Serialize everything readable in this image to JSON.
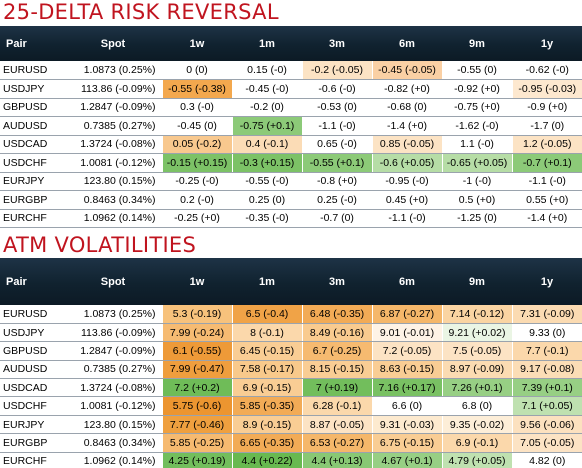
{
  "risk_reversal": {
    "title": "25-DELTA RISK REVERSAL",
    "headers": [
      "Pair",
      "Spot",
      "1w",
      "1m",
      "3m",
      "6m",
      "9m",
      "1y"
    ],
    "rows": [
      {
        "pair": "EURUSD",
        "spot": "1.0873 (0.25%)",
        "cells": [
          {
            "text": "0 (0)",
            "color": "#ffffff"
          },
          {
            "text": "0.15 (-0)",
            "color": "#ffffff"
          },
          {
            "text": "-0.2 (-0.05)",
            "color": "#fce3c4"
          },
          {
            "text": "-0.45 (-0.05)",
            "color": "#fad0a4"
          },
          {
            "text": "-0.55 (0)",
            "color": "#ffffff"
          },
          {
            "text": "-0.62 (-0)",
            "color": "#ffffff"
          }
        ]
      },
      {
        "pair": "USDJPY",
        "spot": "113.86 (-0.09%)",
        "cells": [
          {
            "text": "-0.55 (-0.38)",
            "color": "#f3a84e"
          },
          {
            "text": "-0.45 (-0)",
            "color": "#ffffff"
          },
          {
            "text": "-0.6 (-0)",
            "color": "#ffffff"
          },
          {
            "text": "-0.82 (+0)",
            "color": "#ffffff"
          },
          {
            "text": "-0.92 (+0)",
            "color": "#ffffff"
          },
          {
            "text": "-0.95 (-0.03)",
            "color": "#fde8cf"
          }
        ]
      },
      {
        "pair": "GBPUSD",
        "spot": "1.2847 (-0.09%)",
        "cells": [
          {
            "text": "0.3 (-0)",
            "color": "#ffffff"
          },
          {
            "text": "-0.2 (0)",
            "color": "#ffffff"
          },
          {
            "text": "-0.53 (0)",
            "color": "#ffffff"
          },
          {
            "text": "-0.68 (0)",
            "color": "#ffffff"
          },
          {
            "text": "-0.75 (+0)",
            "color": "#ffffff"
          },
          {
            "text": "-0.9 (+0)",
            "color": "#ffffff"
          }
        ]
      },
      {
        "pair": "AUDUSD",
        "spot": "0.7385 (0.27%)",
        "cells": [
          {
            "text": "-0.45 (0)",
            "color": "#ffffff"
          },
          {
            "text": "-0.75 (+0.1)",
            "color": "#8cca78"
          },
          {
            "text": "-1.1 (-0)",
            "color": "#ffffff"
          },
          {
            "text": "-1.4 (+0)",
            "color": "#ffffff"
          },
          {
            "text": "-1.62 (-0)",
            "color": "#ffffff"
          },
          {
            "text": "-1.7 (0)",
            "color": "#ffffff"
          }
        ]
      },
      {
        "pair": "USDCAD",
        "spot": "1.3724 (-0.08%)",
        "cells": [
          {
            "text": "0.05 (-0.2)",
            "color": "#f8c88e"
          },
          {
            "text": "0.4 (-0.1)",
            "color": "#fbdcb6"
          },
          {
            "text": "0.65 (-0)",
            "color": "#ffffff"
          },
          {
            "text": "0.85 (-0.05)",
            "color": "#fce3c4"
          },
          {
            "text": "1.1 (-0)",
            "color": "#ffffff"
          },
          {
            "text": "1.2 (-0.05)",
            "color": "#fce3c4"
          }
        ]
      },
      {
        "pair": "USDCHF",
        "spot": "1.0081 (-0.12%)",
        "cells": [
          {
            "text": "-0.15 (+0.15)",
            "color": "#7cc266"
          },
          {
            "text": "-0.3 (+0.15)",
            "color": "#7cc266"
          },
          {
            "text": "-0.55 (+0.1)",
            "color": "#8cca78"
          },
          {
            "text": "-0.6 (+0.05)",
            "color": "#b6dda6"
          },
          {
            "text": "-0.65 (+0.05)",
            "color": "#b6dda6"
          },
          {
            "text": "-0.7 (+0.1)",
            "color": "#8cca78"
          }
        ]
      },
      {
        "pair": "EURJPY",
        "spot": "123.80 (0.15%)",
        "cells": [
          {
            "text": "-0.25 (-0)",
            "color": "#ffffff"
          },
          {
            "text": "-0.55 (-0)",
            "color": "#ffffff"
          },
          {
            "text": "-0.8 (+0)",
            "color": "#ffffff"
          },
          {
            "text": "-0.95 (-0)",
            "color": "#ffffff"
          },
          {
            "text": "-1 (-0)",
            "color": "#ffffff"
          },
          {
            "text": "-1.1 (-0)",
            "color": "#ffffff"
          }
        ]
      },
      {
        "pair": "EURGBP",
        "spot": "0.8463 (0.34%)",
        "cells": [
          {
            "text": "0.2 (-0)",
            "color": "#ffffff"
          },
          {
            "text": "0.25 (0)",
            "color": "#ffffff"
          },
          {
            "text": "0.25 (-0)",
            "color": "#ffffff"
          },
          {
            "text": "0.45 (+0)",
            "color": "#ffffff"
          },
          {
            "text": "0.5 (+0)",
            "color": "#ffffff"
          },
          {
            "text": "0.55 (+0)",
            "color": "#ffffff"
          }
        ]
      },
      {
        "pair": "EURCHF",
        "spot": "1.0962 (0.14%)",
        "cells": [
          {
            "text": "-0.25 (+0)",
            "color": "#ffffff"
          },
          {
            "text": "-0.35 (-0)",
            "color": "#ffffff"
          },
          {
            "text": "-0.7 (0)",
            "color": "#ffffff"
          },
          {
            "text": "-1.1 (-0)",
            "color": "#ffffff"
          },
          {
            "text": "-1.25 (0)",
            "color": "#ffffff"
          },
          {
            "text": "-1.4 (+0)",
            "color": "#ffffff"
          }
        ]
      }
    ]
  },
  "atm_vol": {
    "title": "ATM VOLATILITIES",
    "headers": [
      "Pair",
      "Spot",
      "1w",
      "1m",
      "3m",
      "6m",
      "9m",
      "1y"
    ],
    "rows": [
      {
        "pair": "EURUSD",
        "spot": "1.0873 (0.25%)",
        "cells": [
          {
            "text": "5.3 (-0.19)",
            "color": "#f7c27c"
          },
          {
            "text": "6.5 (-0.4)",
            "color": "#f0a347"
          },
          {
            "text": "6.48 (-0.35)",
            "color": "#f2ab56"
          },
          {
            "text": "6.87 (-0.27)",
            "color": "#f5b76a"
          },
          {
            "text": "7.14 (-0.12)",
            "color": "#fad4a2"
          },
          {
            "text": "7.31 (-0.09)",
            "color": "#fbdbb2"
          }
        ]
      },
      {
        "pair": "USDJPY",
        "spot": "113.86 (-0.09%)",
        "cells": [
          {
            "text": "7.99 (-0.24)",
            "color": "#f6bb72"
          },
          {
            "text": "8 (-0.1)",
            "color": "#fbd8ab"
          },
          {
            "text": "8.49 (-0.16)",
            "color": "#f9cb8f"
          },
          {
            "text": "9.01 (-0.01)",
            "color": "#fef3e6"
          },
          {
            "text": "9.21 (+0.02)",
            "color": "#eaf5e4"
          },
          {
            "text": "9.33 (0)",
            "color": "#ffffff"
          }
        ]
      },
      {
        "pair": "GBPUSD",
        "spot": "1.2847 (-0.09%)",
        "cells": [
          {
            "text": "6.1 (-0.55)",
            "color": "#ee9a38"
          },
          {
            "text": "6.45 (-0.15)",
            "color": "#f9cd94"
          },
          {
            "text": "6.7 (-0.25)",
            "color": "#f6ba70"
          },
          {
            "text": "7.2 (-0.05)",
            "color": "#fce3c4"
          },
          {
            "text": "7.5 (-0.05)",
            "color": "#fce3c4"
          },
          {
            "text": "7.7 (-0.1)",
            "color": "#fbd8ab"
          }
        ]
      },
      {
        "pair": "AUDUSD",
        "spot": "0.7385 (0.27%)",
        "cells": [
          {
            "text": "7.99 (-0.47)",
            "color": "#ef9e3e"
          },
          {
            "text": "7.58 (-0.17)",
            "color": "#f8c98b"
          },
          {
            "text": "8.15 (-0.15)",
            "color": "#f9cd94"
          },
          {
            "text": "8.63 (-0.15)",
            "color": "#f9cd94"
          },
          {
            "text": "8.97 (-0.09)",
            "color": "#fbdbb2"
          },
          {
            "text": "9.17 (-0.08)",
            "color": "#fbddb6"
          }
        ]
      },
      {
        "pair": "USDCAD",
        "spot": "1.3724 (-0.08%)",
        "cells": [
          {
            "text": "7.2 (+0.2)",
            "color": "#6fbc58"
          },
          {
            "text": "6.9 (-0.15)",
            "color": "#f9cd94"
          },
          {
            "text": "7 (+0.19)",
            "color": "#72be5c"
          },
          {
            "text": "7.16 (+0.17)",
            "color": "#79c163"
          },
          {
            "text": "7.26 (+0.1)",
            "color": "#97cf84"
          },
          {
            "text": "7.39 (+0.1)",
            "color": "#97cf84"
          }
        ]
      },
      {
        "pair": "USDCHF",
        "spot": "1.0081 (-0.12%)",
        "cells": [
          {
            "text": "5.75 (-0.6)",
            "color": "#ec9530"
          },
          {
            "text": "5.85 (-0.35)",
            "color": "#f2ab56"
          },
          {
            "text": "6.28 (-0.1)",
            "color": "#fbd8ab"
          },
          {
            "text": "6.6 (0)",
            "color": "#ffffff"
          },
          {
            "text": "6.8 (0)",
            "color": "#ffffff"
          },
          {
            "text": "7.1 (+0.05)",
            "color": "#bfe1b0"
          }
        ]
      },
      {
        "pair": "EURJPY",
        "spot": "123.80 (0.15%)",
        "cells": [
          {
            "text": "7.77 (-0.46)",
            "color": "#efa03f"
          },
          {
            "text": "8.9 (-0.15)",
            "color": "#f9cd94"
          },
          {
            "text": "8.87 (-0.05)",
            "color": "#fce3c4"
          },
          {
            "text": "9.31 (-0.03)",
            "color": "#fdeacf"
          },
          {
            "text": "9.35 (-0.02)",
            "color": "#fdeed8"
          },
          {
            "text": "9.56 (-0.06)",
            "color": "#fce1bf"
          }
        ]
      },
      {
        "pair": "EURGBP",
        "spot": "0.8463 (0.34%)",
        "cells": [
          {
            "text": "5.85 (-0.25)",
            "color": "#f6ba70"
          },
          {
            "text": "6.65 (-0.35)",
            "color": "#f2ab56"
          },
          {
            "text": "6.53 (-0.27)",
            "color": "#f5b76a"
          },
          {
            "text": "6.75 (-0.15)",
            "color": "#f9cd94"
          },
          {
            "text": "6.9 (-0.1)",
            "color": "#fbd8ab"
          },
          {
            "text": "7.05 (-0.05)",
            "color": "#fce3c4"
          }
        ]
      },
      {
        "pair": "EURCHF",
        "spot": "1.0962 (0.14%)",
        "cells": [
          {
            "text": "4.25 (+0.19)",
            "color": "#72be5c"
          },
          {
            "text": "4.4 (+0.22)",
            "color": "#68b950"
          },
          {
            "text": "4.4 (+0.13)",
            "color": "#88c874"
          },
          {
            "text": "4.67 (+0.1)",
            "color": "#97cf84"
          },
          {
            "text": "4.79 (+0.05)",
            "color": "#bfe1b0"
          },
          {
            "text": "4.82 (0)",
            "color": "#ffffff"
          }
        ]
      }
    ]
  }
}
